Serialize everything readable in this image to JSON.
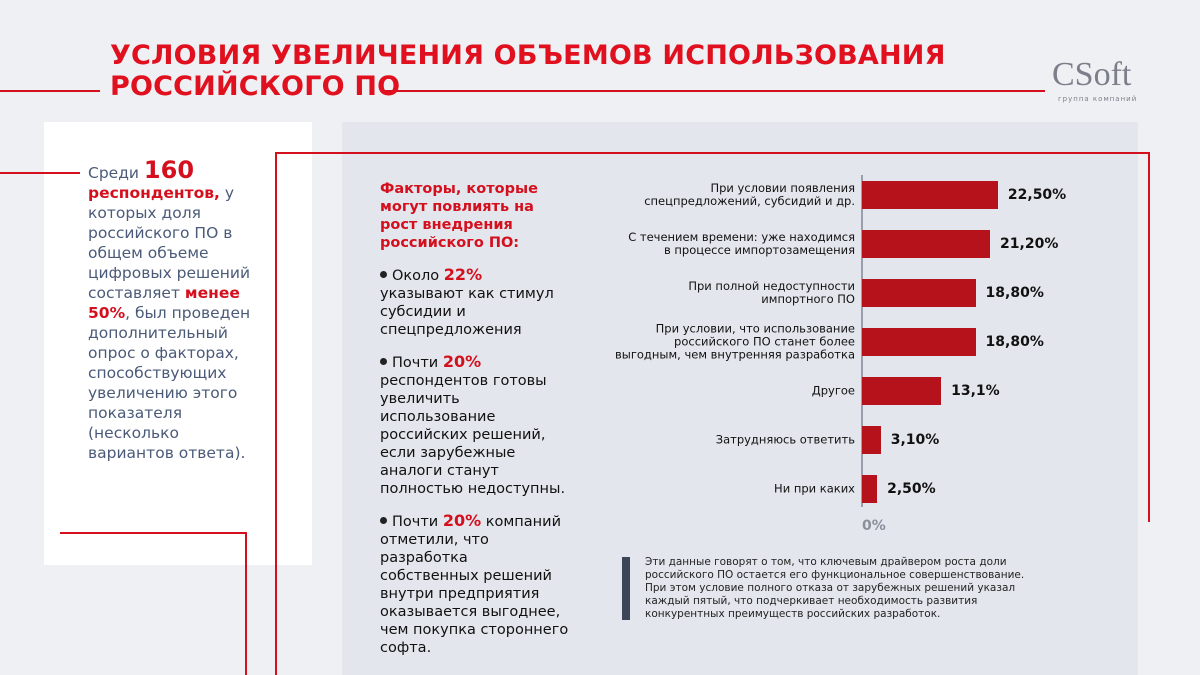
{
  "header": {
    "title_lines": [
      "УСЛОВИЯ УВЕЛИЧЕНИЯ ОБЪЕМОВ ИСПОЛЬЗОВАНИЯ",
      "РОССИЙСКОГО ПО"
    ],
    "logo": "CSoft",
    "logo_subtitle": "группа компаний"
  },
  "intro": {
    "segments": [
      {
        "text": "Среди ",
        "style": "plain"
      },
      {
        "text": "160",
        "style": "big"
      },
      {
        "text": " респондентов,",
        "style": "red"
      },
      {
        "text": " у которых доля российского ПО в общем объеме цифровых решений составляет ",
        "style": "plain"
      },
      {
        "text": "менее 50%",
        "style": "red"
      },
      {
        "text": ", был проведен дополнительный опрос о факторах, способствующих увеличению этого показателя (несколько вариантов ответа).",
        "style": "plain"
      }
    ]
  },
  "factors": {
    "heading": "Факторы, которые могут повлиять на рост внедрения российского ПО:",
    "bullets": [
      {
        "segments": [
          {
            "text": "Около ",
            "style": "plain"
          },
          {
            "text": "22%",
            "style": "red"
          },
          {
            "text": " указывают как стимул субсидии и спецпредложения",
            "style": "plain"
          }
        ]
      },
      {
        "segments": [
          {
            "text": "Почти ",
            "style": "plain"
          },
          {
            "text": "20%",
            "style": "red"
          },
          {
            "text": " респондентов готовы увеличить использование российских решений, если зарубежные аналоги станут полностью недоступны.",
            "style": "plain"
          }
        ]
      },
      {
        "segments": [
          {
            "text": "Почти ",
            "style": "plain"
          },
          {
            "text": "20%",
            "style": "red"
          },
          {
            "text": " компаний отметили, что разработка собственных решений внутри предприятия оказывается выгоднее, чем покупка стороннего софта.",
            "style": "plain"
          }
        ]
      }
    ]
  },
  "chart_data": {
    "type": "hbar",
    "categories": [
      "При условии появления\nспецпредложений, субсидий и др.",
      "С течением времени: уже находимся\nв процессе импортозамещения",
      "При полной недоступности\nимпортного ПО",
      "При условии, что использование\nроссийского ПО станет более\nвыгодным, чем внутренняя разработка",
      "Другое",
      "Затрудняюсь ответить",
      "Ни при каких"
    ],
    "values": [
      22.5,
      21.2,
      18.8,
      18.8,
      13.1,
      3.1,
      2.5
    ],
    "value_labels": [
      "22,50%",
      "21,20%",
      "18,80%",
      "18,80%",
      "13,1%",
      "3,10%",
      "2,50%"
    ],
    "color": "#b5121b",
    "xlim": [
      0,
      25
    ],
    "xticks": [
      {
        "value": 0,
        "label": "0%"
      }
    ]
  },
  "note": "Эти данные говорят о том, что ключевым драйвером роста доли российского ПО остается его функциональное совершенствование. При этом условие полного отказа от зарубежных решений указал каждый пятый, что подчеркивает необходимость развития конкурентных преимуществ российских разработок."
}
